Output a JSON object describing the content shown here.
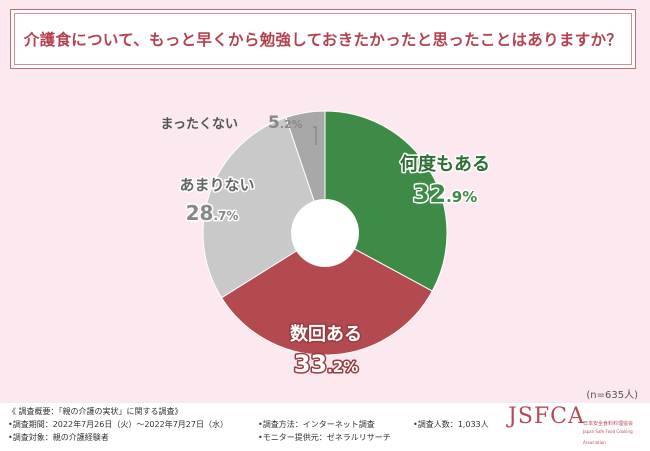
{
  "title": "介護食について、もっと早くから勉強しておきたかったと思ったことはありますか？",
  "sample_size": "(n=635人)",
  "chart_data": {
    "type": "pie",
    "donut": true,
    "slices": [
      {
        "label": "何度もある",
        "value": 32.9,
        "color": "#3d8b46"
      },
      {
        "label": "数回ある",
        "value": 33.2,
        "color": "#b24a4f"
      },
      {
        "label": "あまりない",
        "value": 28.7,
        "color": "#c9c9c9"
      },
      {
        "label": "まったくない",
        "value": 5.2,
        "color": "#a8a8a8"
      }
    ],
    "value_suffix": "%"
  },
  "footer": {
    "survey_title": "《 調査概要：「親の介護の実状」に関する調査》",
    "period": "•調査期間：2022年7月26日（火）〜2022年7月27日（水）",
    "target": "•調査対象：親の介護経験者",
    "method": "•調査方法：インターネット調査",
    "provider": "•モニター提供元：ゼネラルリサーチ",
    "count": "•調査人数：1,033人",
    "logo": "JSFCA",
    "logo_sub1": "日本安全食料料理協会",
    "logo_sub2": "Japan Safe Food Cooking Association"
  }
}
